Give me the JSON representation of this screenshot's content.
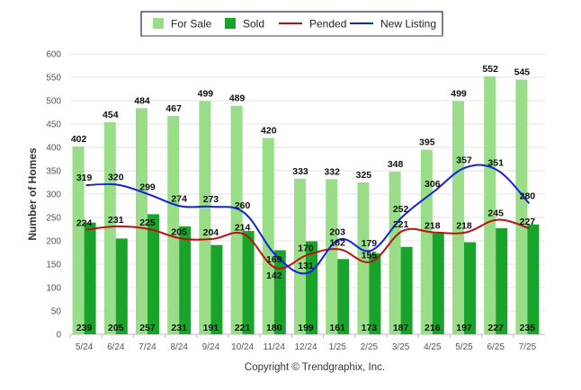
{
  "chart_data": {
    "type": "bar",
    "ylabel": "Number of Homes",
    "ylim": [
      0,
      600
    ],
    "yticks": [
      0,
      50,
      100,
      150,
      200,
      250,
      300,
      350,
      400,
      450,
      500,
      550,
      600
    ],
    "grid": true,
    "legend_position": "top-center",
    "categories": [
      "5/24",
      "6/24",
      "7/24",
      "8/24",
      "9/24",
      "10/24",
      "11/24",
      "12/24",
      "1/25",
      "2/25",
      "3/25",
      "4/25",
      "5/25",
      "6/25",
      "7/25"
    ],
    "series": [
      {
        "name": "For Sale",
        "kind": "bar",
        "color": "#99dd88",
        "values": [
          402,
          454,
          484,
          467,
          499,
          489,
          420,
          333,
          332,
          325,
          348,
          395,
          499,
          552,
          545
        ]
      },
      {
        "name": "Sold",
        "kind": "bar",
        "color": "#1aa32a",
        "values": [
          239,
          205,
          257,
          231,
          191,
          221,
          180,
          199,
          161,
          173,
          187,
          216,
          197,
          227,
          235
        ]
      },
      {
        "name": "Pended",
        "kind": "line",
        "color": "#bb1111",
        "values": [
          224,
          231,
          225,
          205,
          204,
          214,
          142,
          170,
          182,
          155,
          221,
          218,
          218,
          245,
          227
        ]
      },
      {
        "name": "New Listing",
        "kind": "line",
        "color": "#1122dd",
        "values": [
          319,
          320,
          299,
          274,
          273,
          260,
          169,
          131,
          203,
          179,
          252,
          306,
          357,
          351,
          280
        ]
      }
    ]
  },
  "footer": "Copyright © Trendgraphix, Inc."
}
